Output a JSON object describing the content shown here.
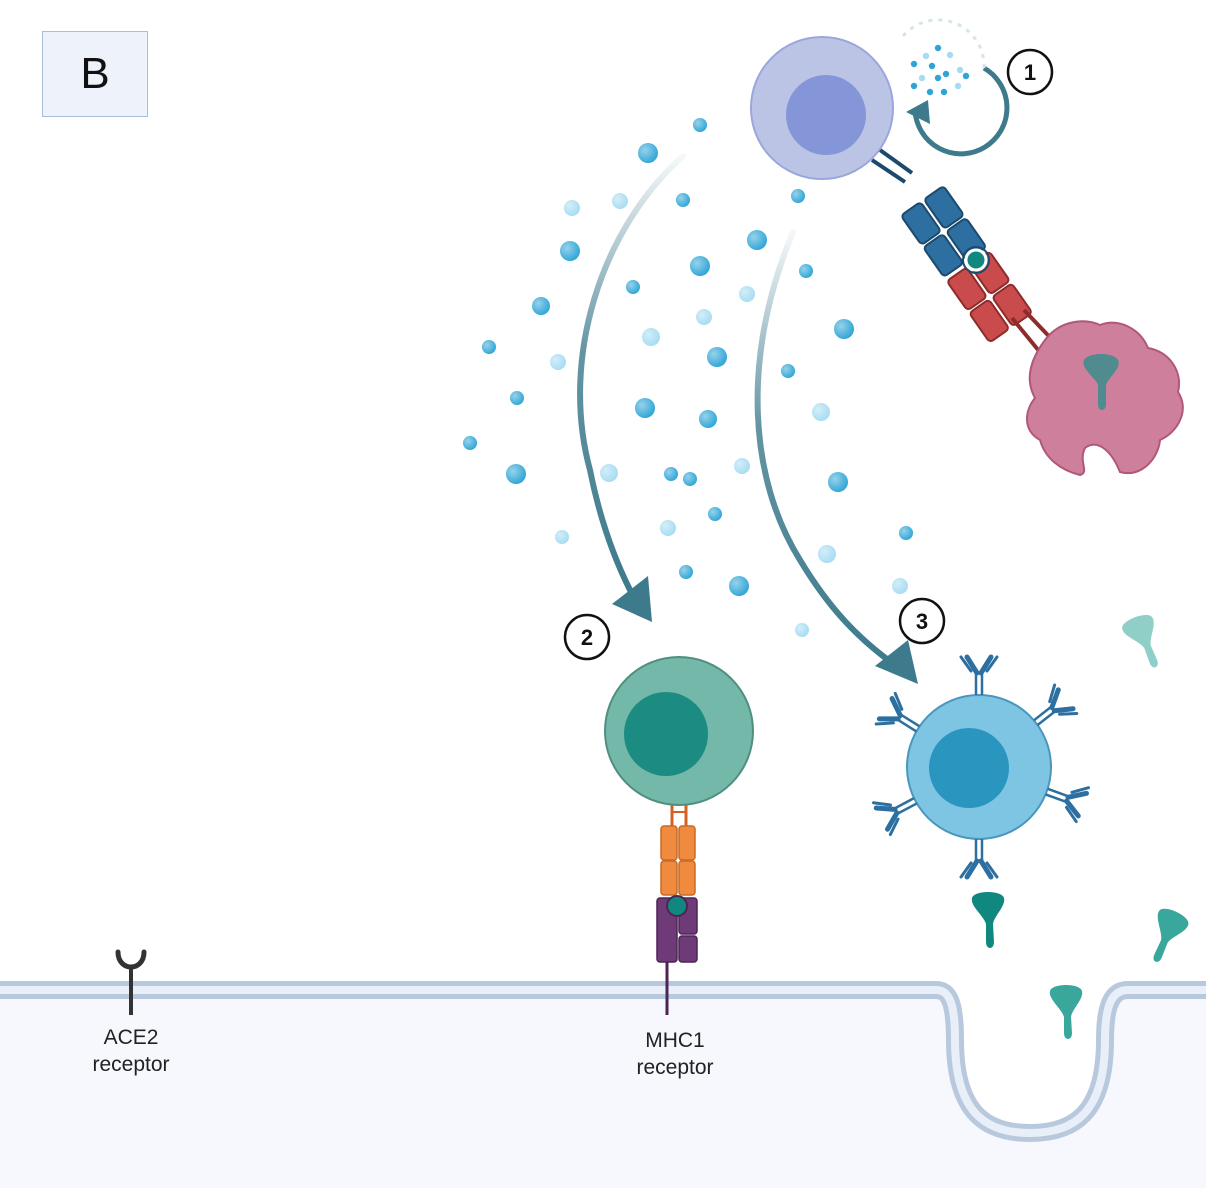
{
  "panel_label": "B",
  "steps": {
    "one": "1",
    "two": "2",
    "three": "3"
  },
  "labels": {
    "ace2_line1": "ACE2",
    "ace2_line2": "receptor",
    "mhc_line1": "MHC1",
    "mhc_line2": "receptor"
  },
  "colors": {
    "membrane": "#b9c9dd",
    "cell_interior": "#f6f8fd",
    "cytokine_dark": "#2ea5d6",
    "cytokine_light": "#a6dcf2",
    "arrow": "#3d7a8c",
    "apc_cell": "#bcc4e6",
    "t_cell": "#74b8a9",
    "b_cell": "#7ec4e3",
    "virus": "#cd7f9b",
    "antigen": "#3aa79c"
  }
}
